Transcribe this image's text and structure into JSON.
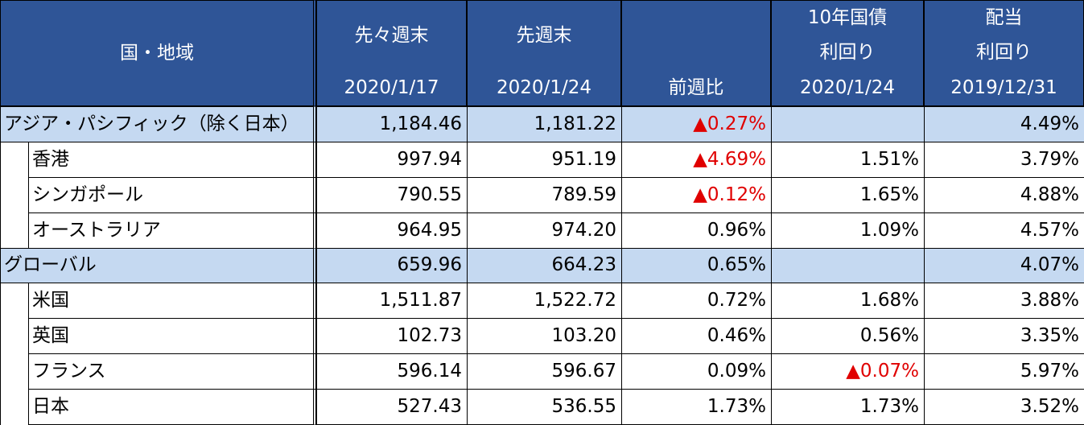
{
  "header": {
    "columns": [
      {
        "lines": [
          "国・地域"
        ]
      },
      {
        "lines": [
          "先々週末",
          "2020/1/17"
        ]
      },
      {
        "lines": [
          "先週末",
          "2020/1/24"
        ]
      },
      {
        "lines": [
          "前週比"
        ]
      },
      {
        "lines": [
          "10年国債",
          "利回り",
          "2020/1/24"
        ]
      },
      {
        "lines": [
          "配当",
          "利回り",
          "2019/12/31"
        ]
      }
    ]
  },
  "groups": [
    {
      "label": "アジア・パシフィック（除く日本）",
      "values": [
        "1,184.46",
        "1,181.22",
        "▲0.27%",
        null,
        "4.49%"
      ],
      "children": [
        {
          "label": "香港",
          "values": [
            "997.94",
            "951.19",
            "▲4.69%",
            "1.51%",
            "3.79%"
          ]
        },
        {
          "label": "シンガポール",
          "values": [
            "790.55",
            "789.59",
            "▲0.12%",
            "1.65%",
            "4.88%"
          ]
        },
        {
          "label": "オーストラリア",
          "values": [
            "964.95",
            "974.20",
            "0.96%",
            "1.09%",
            "4.57%"
          ]
        }
      ]
    },
    {
      "label": "グローバル",
      "values": [
        "659.96",
        "664.23",
        "0.65%",
        null,
        "4.07%"
      ],
      "children": [
        {
          "label": "米国",
          "values": [
            "1,511.87",
            "1,522.72",
            "0.72%",
            "1.68%",
            "3.88%"
          ]
        },
        {
          "label": "英国",
          "values": [
            "102.73",
            "103.20",
            "0.46%",
            "0.56%",
            "3.35%"
          ]
        },
        {
          "label": "フランス",
          "values": [
            "596.14",
            "596.67",
            "0.09%",
            "▲0.07%",
            "5.97%"
          ]
        },
        {
          "label": "日本",
          "values": [
            "527.43",
            "536.55",
            "1.73%",
            "1.73%",
            "3.52%"
          ]
        }
      ]
    }
  ]
}
